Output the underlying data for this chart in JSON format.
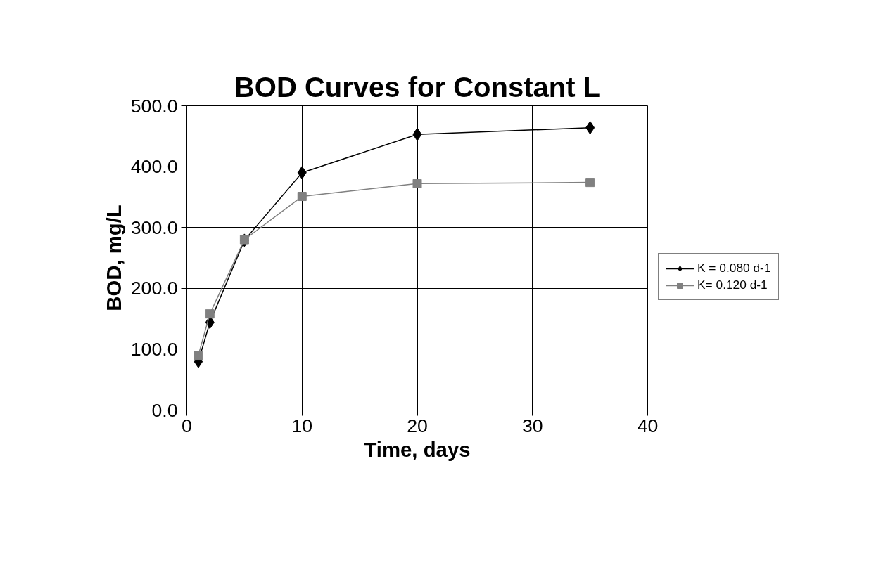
{
  "chart_data": {
    "type": "line",
    "title": "BOD Curves for Constant L",
    "xlabel": "Time, days",
    "ylabel": "BOD, mg/L",
    "series": [
      {
        "name": "K = 0.080 d-1",
        "color": "#000000",
        "marker": "diamond",
        "x": [
          1,
          2,
          5,
          10,
          20,
          35
        ],
        "values": [
          80,
          144,
          279,
          390,
          453,
          464
        ]
      },
      {
        "name": "K= 0.120 d-1",
        "color": "#808080",
        "marker": "square",
        "x": [
          1,
          2,
          5,
          10,
          20,
          35
        ],
        "values": [
          90,
          158,
          280,
          351,
          372,
          374
        ]
      }
    ],
    "xlim": [
      0,
      40
    ],
    "xticks": [
      0,
      10,
      20,
      30,
      40
    ],
    "ylim": [
      0,
      500
    ],
    "yticks": [
      {
        "value": 0,
        "label": "0.0"
      },
      {
        "value": 100,
        "label": "100.0"
      },
      {
        "value": 200,
        "label": "200.0"
      },
      {
        "value": 300,
        "label": "300.0"
      },
      {
        "value": 400,
        "label": "400.0"
      },
      {
        "value": 500,
        "label": "500.0"
      }
    ],
    "grid": true,
    "legend": "right"
  }
}
